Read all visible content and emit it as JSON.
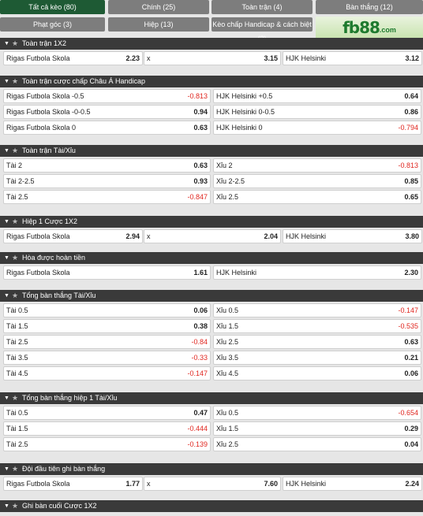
{
  "tabs": [
    {
      "label": "Tất cả kèo (80)"
    },
    {
      "label": "Chính (25)"
    },
    {
      "label": "Toàn trận (4)"
    },
    {
      "label": "Bàn thắng (12)"
    },
    {
      "label": "Phạt góc (3)"
    },
    {
      "label": "Hiệp (13)"
    },
    {
      "label": "Kèo chấp Handicap & cách biệt (3)"
    }
  ],
  "logo": {
    "text": "fb88",
    "suffix": ".com"
  },
  "sections": [
    {
      "title": "Toàn trận 1X2",
      "rows": [
        [
          {
            "label": "Rigas Futbola Skola",
            "odds": "2.23"
          },
          {
            "label": "x",
            "odds": "3.15"
          },
          {
            "label": "HJK Helsinki",
            "odds": "3.12"
          }
        ]
      ]
    },
    {
      "title": "Toàn trận cược chấp Châu Á Handicap",
      "rows": [
        [
          {
            "label": "Rigas Futbola Skola -0.5",
            "odds": "-0.813"
          },
          {
            "label": "HJK Helsinki +0.5",
            "odds": "0.64"
          }
        ],
        [
          {
            "label": "Rigas Futbola Skola -0-0.5",
            "odds": "0.94"
          },
          {
            "label": "HJK Helsinki 0-0.5",
            "odds": "0.86"
          }
        ],
        [
          {
            "label": "Rigas Futbola Skola 0",
            "odds": "0.63"
          },
          {
            "label": "HJK Helsinki 0",
            "odds": "-0.794"
          }
        ]
      ]
    },
    {
      "title": "Toàn trận Tài/Xỉu",
      "rows": [
        [
          {
            "label": "Tài 2",
            "odds": "0.63"
          },
          {
            "label": "Xỉu 2",
            "odds": "-0.813"
          }
        ],
        [
          {
            "label": "Tài 2-2.5",
            "odds": "0.93"
          },
          {
            "label": "Xỉu 2-2.5",
            "odds": "0.85"
          }
        ],
        [
          {
            "label": "Tài 2.5",
            "odds": "-0.847"
          },
          {
            "label": "Xỉu 2.5",
            "odds": "0.65"
          }
        ]
      ]
    },
    {
      "title": "Hiệp 1 Cược 1X2",
      "rows": [
        [
          {
            "label": "Rigas Futbola Skola",
            "odds": "2.94"
          },
          {
            "label": "x",
            "odds": "2.04"
          },
          {
            "label": "HJK Helsinki",
            "odds": "3.80"
          }
        ]
      ]
    },
    {
      "title": "Hòa được hoàn tiền",
      "rows": [
        [
          {
            "label": "Rigas Futbola Skola",
            "odds": "1.61"
          },
          {
            "label": "HJK Helsinki",
            "odds": "2.30"
          }
        ]
      ]
    },
    {
      "title": "Tổng bàn thắng Tài/Xỉu",
      "rows": [
        [
          {
            "label": "Tài 0.5",
            "odds": "0.06"
          },
          {
            "label": "Xỉu 0.5",
            "odds": "-0.147"
          }
        ],
        [
          {
            "label": "Tài 1.5",
            "odds": "0.38"
          },
          {
            "label": "Xỉu 1.5",
            "odds": "-0.535"
          }
        ],
        [
          {
            "label": "Tài 2.5",
            "odds": "-0.84"
          },
          {
            "label": "Xỉu 2.5",
            "odds": "0.63"
          }
        ],
        [
          {
            "label": "Tài 3.5",
            "odds": "-0.33"
          },
          {
            "label": "Xỉu 3.5",
            "odds": "0.21"
          }
        ],
        [
          {
            "label": "Tài 4.5",
            "odds": "-0.147"
          },
          {
            "label": "Xỉu 4.5",
            "odds": "0.06"
          }
        ]
      ]
    },
    {
      "title": "Tổng bàn thắng hiệp 1 Tài/Xỉu",
      "rows": [
        [
          {
            "label": "Tài 0.5",
            "odds": "0.47"
          },
          {
            "label": "Xỉu 0.5",
            "odds": "-0.654"
          }
        ],
        [
          {
            "label": "Tài 1.5",
            "odds": "-0.444"
          },
          {
            "label": "Xỉu 1.5",
            "odds": "0.29"
          }
        ],
        [
          {
            "label": "Tài 2.5",
            "odds": "-0.139"
          },
          {
            "label": "Xỉu 2.5",
            "odds": "0.04"
          }
        ]
      ]
    },
    {
      "title": "Đội đầu tiên ghi bàn thắng",
      "rows": [
        [
          {
            "label": "Rigas Futbola Skola",
            "odds": "1.77"
          },
          {
            "label": "x",
            "odds": "7.60"
          },
          {
            "label": "HJK Helsinki",
            "odds": "2.24"
          }
        ]
      ]
    },
    {
      "title": "Ghi bàn cuối Cược 1X2",
      "rows": []
    }
  ],
  "colors": {
    "active_tab": "#1e5a34",
    "tab": "#7d7d7d",
    "header": "#3a3a3a",
    "negative": "#e0261f"
  },
  "icons": {
    "collapse": "chevron-down-icon",
    "favorite": "star-icon"
  }
}
